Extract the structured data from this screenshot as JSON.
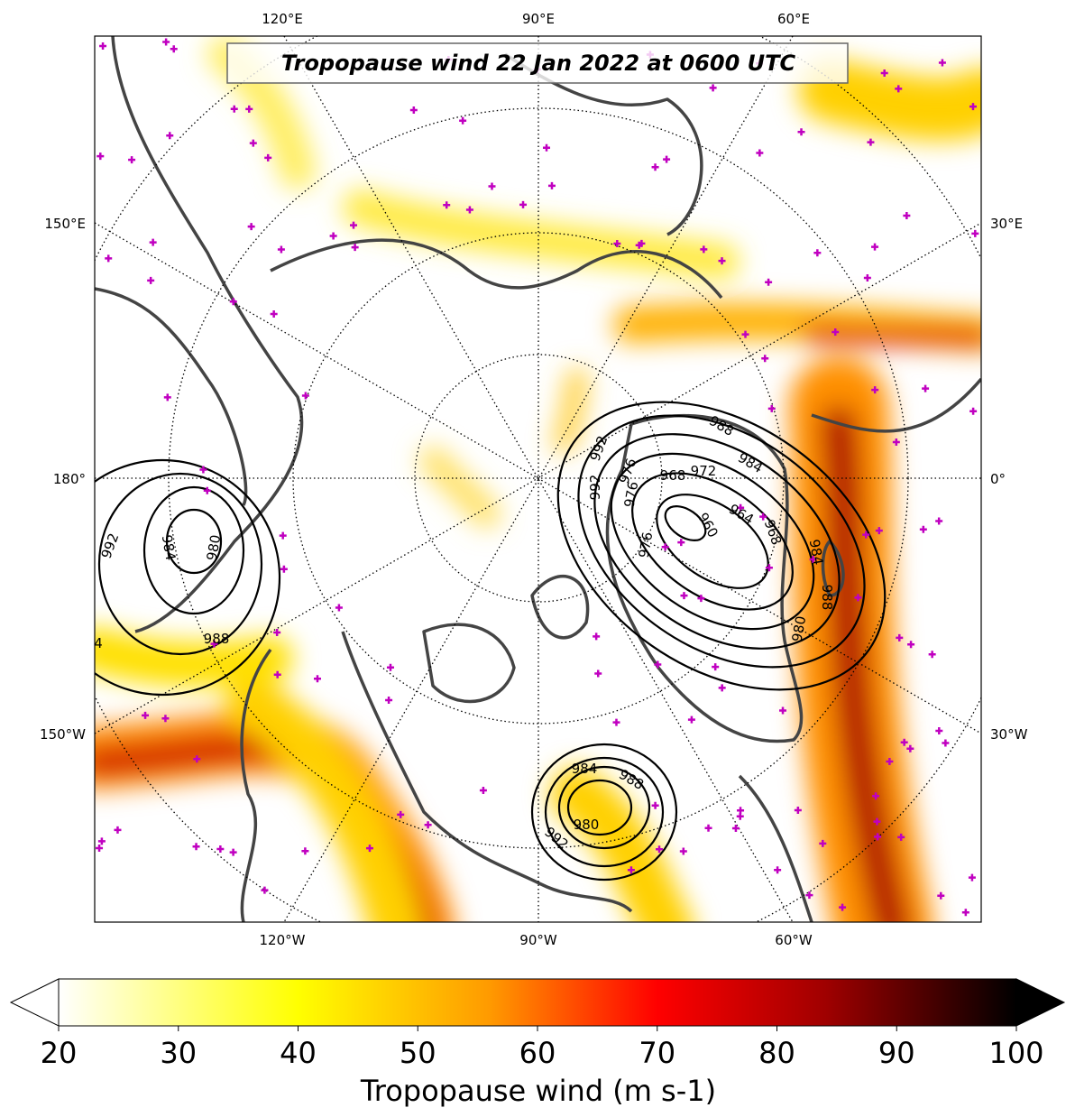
{
  "title": "Tropopause wind 22 Jan 2022 at 0600 UTC",
  "longitude_labels": {
    "top": [
      "120°E",
      "90°E",
      "60°E"
    ],
    "left": [
      "150°E",
      "180°",
      "150°W"
    ],
    "right": [
      "30°E",
      "0°",
      "30°W"
    ],
    "bottom": [
      "120°W",
      "90°W",
      "60°W"
    ]
  },
  "contour_labels": [
    992,
    984,
    980,
    988,
    4,
    992,
    992,
    976,
    976,
    988,
    984,
    972,
    968,
    964,
    960,
    968,
    984,
    988,
    980,
    976,
    984,
    988,
    980,
    992
  ],
  "colorbar": {
    "label": "Tropopause wind (m s-1)",
    "range": [
      20,
      100
    ],
    "ticks": [
      20,
      30,
      40,
      50,
      60,
      70,
      80,
      90,
      100
    ]
  }
}
